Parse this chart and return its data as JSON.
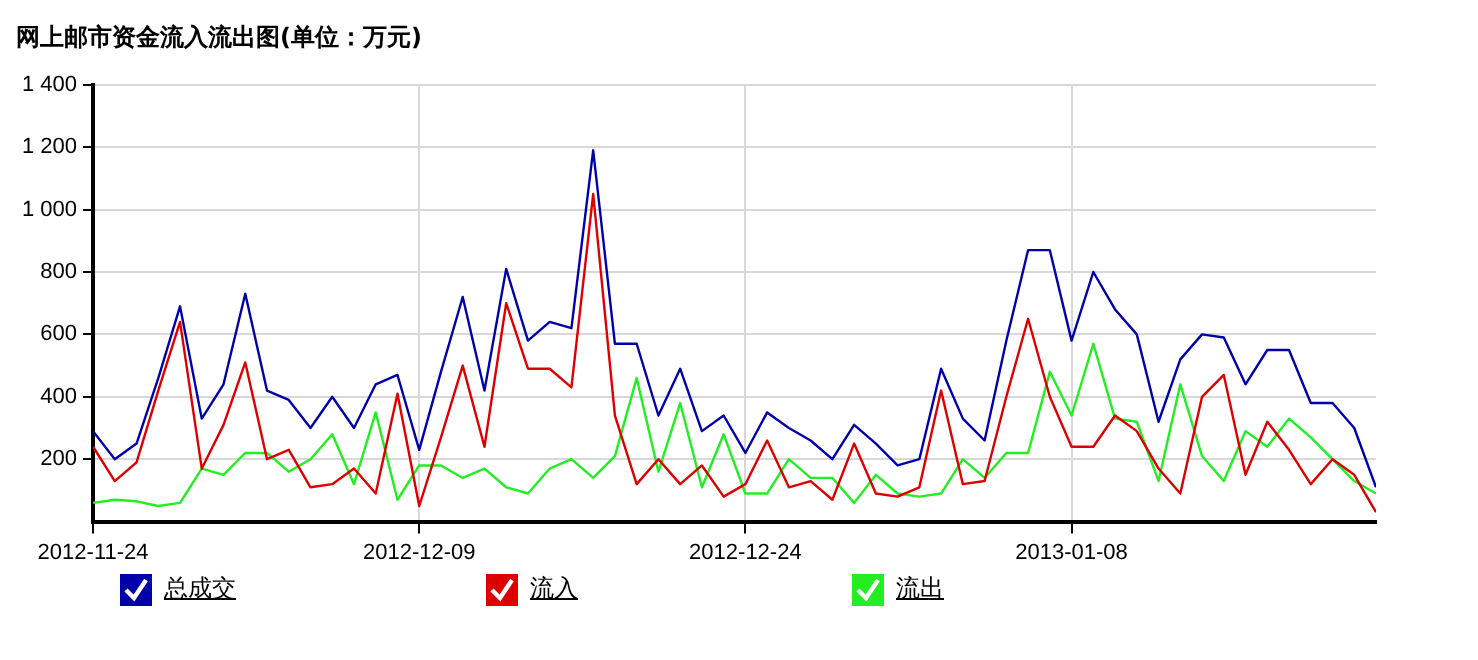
{
  "chart_data": {
    "type": "line",
    "title": "网上邮市资金流入流出图(单位：万元)",
    "x": [
      "2012-11-24",
      "2012-11-25",
      "2012-11-26",
      "2012-11-27",
      "2012-11-28",
      "2012-11-29",
      "2012-11-30",
      "2012-12-01",
      "2012-12-02",
      "2012-12-03",
      "2012-12-04",
      "2012-12-05",
      "2012-12-06",
      "2012-12-07",
      "2012-12-08",
      "2012-12-09",
      "2012-12-10",
      "2012-12-11",
      "2012-12-12",
      "2012-12-13",
      "2012-12-14",
      "2012-12-15",
      "2012-12-16",
      "2012-12-17",
      "2012-12-18",
      "2012-12-19",
      "2012-12-20",
      "2012-12-21",
      "2012-12-22",
      "2012-12-23",
      "2012-12-24",
      "2012-12-25",
      "2012-12-26",
      "2012-12-27",
      "2012-12-28",
      "2012-12-29",
      "2012-12-30",
      "2012-12-31",
      "2013-01-01",
      "2013-01-02",
      "2013-01-03",
      "2013-01-04",
      "2013-01-05",
      "2013-01-06",
      "2013-01-07",
      "2013-01-08",
      "2013-01-09",
      "2013-01-10",
      "2013-01-11",
      "2013-01-12",
      "2013-01-13",
      "2013-01-14",
      "2013-01-15",
      "2013-01-16",
      "2013-01-17",
      "2013-01-18",
      "2013-01-19",
      "2013-01-20",
      "2013-01-21",
      "2013-01-22"
    ],
    "series": [
      {
        "name": "总成交",
        "color": "#0000aa",
        "values": [
          290,
          200,
          250,
          460,
          690,
          330,
          440,
          730,
          420,
          390,
          300,
          400,
          300,
          440,
          470,
          230,
          480,
          720,
          420,
          810,
          580,
          640,
          620,
          1190,
          570,
          570,
          340,
          490,
          290,
          340,
          220,
          350,
          300,
          260,
          200,
          310,
          250,
          180,
          200,
          490,
          330,
          260,
          580,
          870,
          870,
          580,
          800,
          680,
          600,
          320,
          520,
          600,
          590,
          440,
          550,
          550,
          380,
          380,
          300,
          110
        ]
      },
      {
        "name": "流入",
        "color": "#dd0000",
        "values": [
          240,
          130,
          190,
          420,
          640,
          170,
          310,
          510,
          200,
          230,
          110,
          120,
          170,
          90,
          410,
          50,
          270,
          500,
          240,
          700,
          490,
          490,
          430,
          1050,
          340,
          120,
          200,
          120,
          180,
          80,
          120,
          260,
          110,
          130,
          70,
          250,
          90,
          80,
          110,
          420,
          120,
          130,
          400,
          650,
          400,
          240,
          240,
          340,
          290,
          170,
          90,
          400,
          470,
          150,
          320,
          230,
          120,
          200,
          150,
          30
        ]
      },
      {
        "name": "流出",
        "color": "#22ee22",
        "values": [
          60,
          70,
          65,
          50,
          60,
          170,
          150,
          220,
          220,
          160,
          200,
          280,
          120,
          350,
          70,
          180,
          180,
          140,
          170,
          110,
          90,
          170,
          200,
          140,
          210,
          460,
          160,
          380,
          110,
          280,
          90,
          90,
          200,
          140,
          140,
          60,
          150,
          90,
          80,
          90,
          200,
          140,
          220,
          220,
          480,
          340,
          570,
          330,
          320,
          130,
          440,
          210,
          130,
          290,
          240,
          330,
          270,
          200,
          130,
          90
        ]
      }
    ],
    "xlim": [
      "2012-11-24",
      "2013-01-22"
    ],
    "xticks": [
      "2012-11-24",
      "2012-12-09",
      "2012-12-24",
      "2013-01-08"
    ],
    "ylim": [
      0,
      1400
    ],
    "yticks": [
      {
        "value": 200,
        "label": "200"
      },
      {
        "value": 400,
        "label": "400"
      },
      {
        "value": 600,
        "label": "600"
      },
      {
        "value": 800,
        "label": "800"
      },
      {
        "value": 1000,
        "label": "1 000"
      },
      {
        "value": 1200,
        "label": "1 200"
      },
      {
        "value": 1400,
        "label": "1 400"
      }
    ],
    "grid": true,
    "legend": "bottom",
    "marker": "none",
    "line_style": "solid"
  }
}
